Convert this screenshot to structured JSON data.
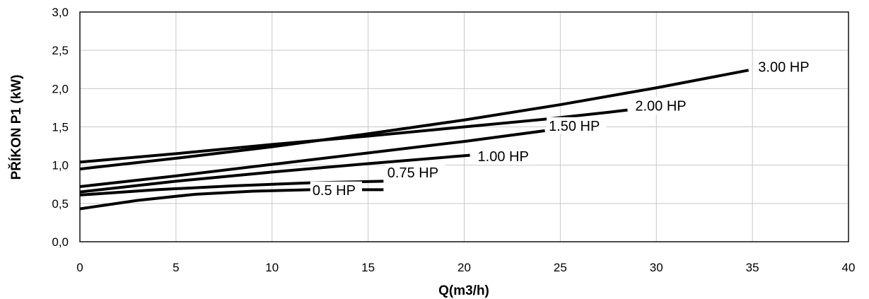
{
  "chart_data": {
    "type": "line",
    "xlabel": "Q(m3/h)",
    "ylabel": "PŘÍKON P1 (kW)",
    "xlim": [
      0,
      40
    ],
    "ylim": [
      0,
      3.0
    ],
    "x_ticks": [
      "0",
      "5",
      "10",
      "15",
      "20",
      "25",
      "30",
      "35",
      "40"
    ],
    "y_ticks": [
      "0,0",
      "0,5",
      "1,0",
      "1,5",
      "2,0",
      "2,5",
      "3,0"
    ],
    "grid": true,
    "series": [
      {
        "name": "3.00 HP",
        "x": [
          0,
          5,
          10,
          15,
          20,
          25,
          30,
          34.8
        ],
        "y": [
          0.95,
          1.09,
          1.24,
          1.41,
          1.59,
          1.79,
          2.01,
          2.24
        ]
      },
      {
        "name": "2.00 HP",
        "x": [
          0,
          5,
          10,
          15,
          20,
          24.2,
          27.5,
          28.5
        ],
        "y": [
          1.04,
          1.15,
          1.27,
          1.38,
          1.5,
          1.6,
          1.69,
          1.72
        ]
      },
      {
        "name": "1.50 HP",
        "x": [
          0,
          5,
          10,
          15,
          20,
          24.2
        ],
        "y": [
          0.72,
          0.86,
          1.01,
          1.16,
          1.31,
          1.45
        ]
      },
      {
        "name": "1.00 HP",
        "x": [
          0,
          5,
          10,
          15,
          20.3
        ],
        "y": [
          0.65,
          0.79,
          0.91,
          1.02,
          1.13
        ]
      },
      {
        "name": "0.75 HP",
        "x": [
          0,
          4,
          8,
          12,
          15.8
        ],
        "y": [
          0.61,
          0.68,
          0.73,
          0.77,
          0.79
        ]
      },
      {
        "name": "0.5 HP",
        "x": [
          0,
          3,
          6,
          9,
          12,
          15.8
        ],
        "y": [
          0.43,
          0.54,
          0.62,
          0.66,
          0.68,
          0.68
        ]
      }
    ],
    "annotations": [
      {
        "text": "3.00 HP",
        "x": 35.3,
        "y": 2.24
      },
      {
        "text": "2.00 HP",
        "x": 28.9,
        "y": 1.73
      },
      {
        "text": "1.50 HP",
        "x": 24.4,
        "y": 1.47
      },
      {
        "text": "1.00 HP",
        "x": 20.7,
        "y": 1.07
      },
      {
        "text": "0.75 HP",
        "x": 16.0,
        "y": 0.86
      },
      {
        "text": "0.5 HP",
        "x": 12.1,
        "y": 0.63
      }
    ]
  }
}
